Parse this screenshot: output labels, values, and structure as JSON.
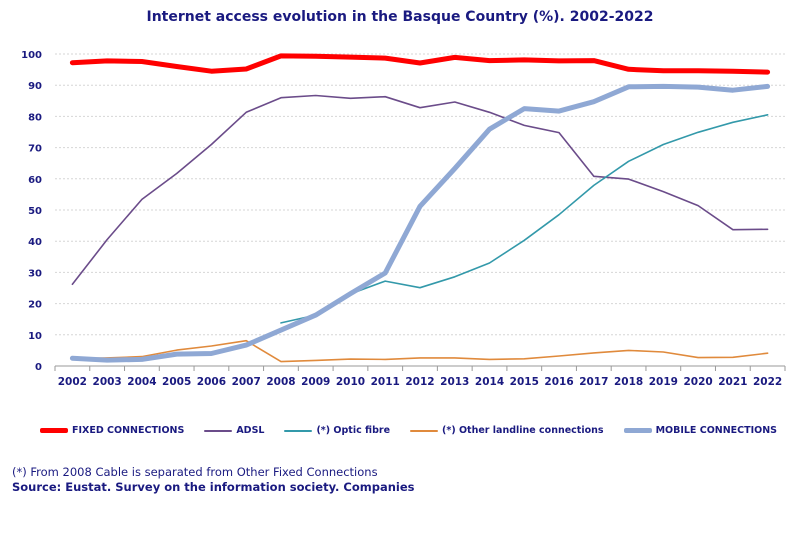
{
  "chart_data": {
    "type": "line",
    "title": "Internet access evolution in the Basque Country (%). 2002-2022",
    "x": [
      "2002",
      "2003",
      "2004",
      "2005",
      "2006",
      "2007",
      "2008",
      "2009",
      "2010",
      "2011",
      "2012",
      "2013",
      "2014",
      "2015",
      "2016",
      "2017",
      "2018",
      "2019",
      "2020",
      "2021",
      "2022"
    ],
    "ylim": [
      0,
      100
    ],
    "yticks": [
      0,
      10,
      20,
      30,
      40,
      50,
      60,
      70,
      80,
      90,
      100
    ],
    "grid": true,
    "legend_position": "bottom",
    "series": [
      {
        "name": "FIXED CONNECTIONS",
        "color": "#ff0000",
        "values": [
          97.2,
          97.8,
          97.6,
          96.0,
          94.5,
          95.2,
          99.4,
          99.3,
          99.0,
          98.7,
          97.1,
          98.9,
          97.9,
          98.1,
          97.8,
          97.9,
          95.1,
          94.6,
          94.6,
          94.5,
          94.2
        ]
      },
      {
        "name": "ADSL",
        "color": "#6b4c8a",
        "values": [
          26.2,
          40.5,
          53.4,
          61.7,
          71.0,
          81.3,
          86.0,
          86.7,
          85.8,
          86.3,
          82.8,
          84.6,
          81.3,
          77.1,
          74.8,
          60.8,
          59.9,
          55.9,
          51.4,
          43.7,
          43.8
        ]
      },
      {
        "name": "(*) Optic fibre",
        "color": "#3399aa",
        "values": [
          null,
          null,
          null,
          null,
          null,
          null,
          13.8,
          16.3,
          23.1,
          27.2,
          25.1,
          28.6,
          33.0,
          40.3,
          48.5,
          57.9,
          65.6,
          71.0,
          74.9,
          78.1,
          80.5
        ]
      },
      {
        "name": "(*) Other landline connections",
        "color": "#e08a3c",
        "values": [
          2.3,
          2.6,
          3.0,
          5.1,
          6.4,
          8.1,
          1.4,
          1.8,
          2.2,
          2.1,
          2.6,
          2.6,
          2.1,
          2.3,
          3.2,
          4.2,
          5.0,
          4.5,
          2.7,
          2.8,
          4.1
        ]
      },
      {
        "name": "MOBILE CONNECTIONS",
        "color": "#8fa8d4",
        "values": [
          2.5,
          1.9,
          2.1,
          3.8,
          4.0,
          6.7,
          11.5,
          16.3,
          23.2,
          29.8,
          51.2,
          63.3,
          75.9,
          82.5,
          81.7,
          84.7,
          89.5,
          89.6,
          89.4,
          88.4,
          89.6
        ]
      }
    ],
    "notes": [
      "(*) From 2008 Cable is separated from Other Fixed Connections"
    ],
    "source": "Source: Eustat. Survey on the information society. Companies"
  }
}
